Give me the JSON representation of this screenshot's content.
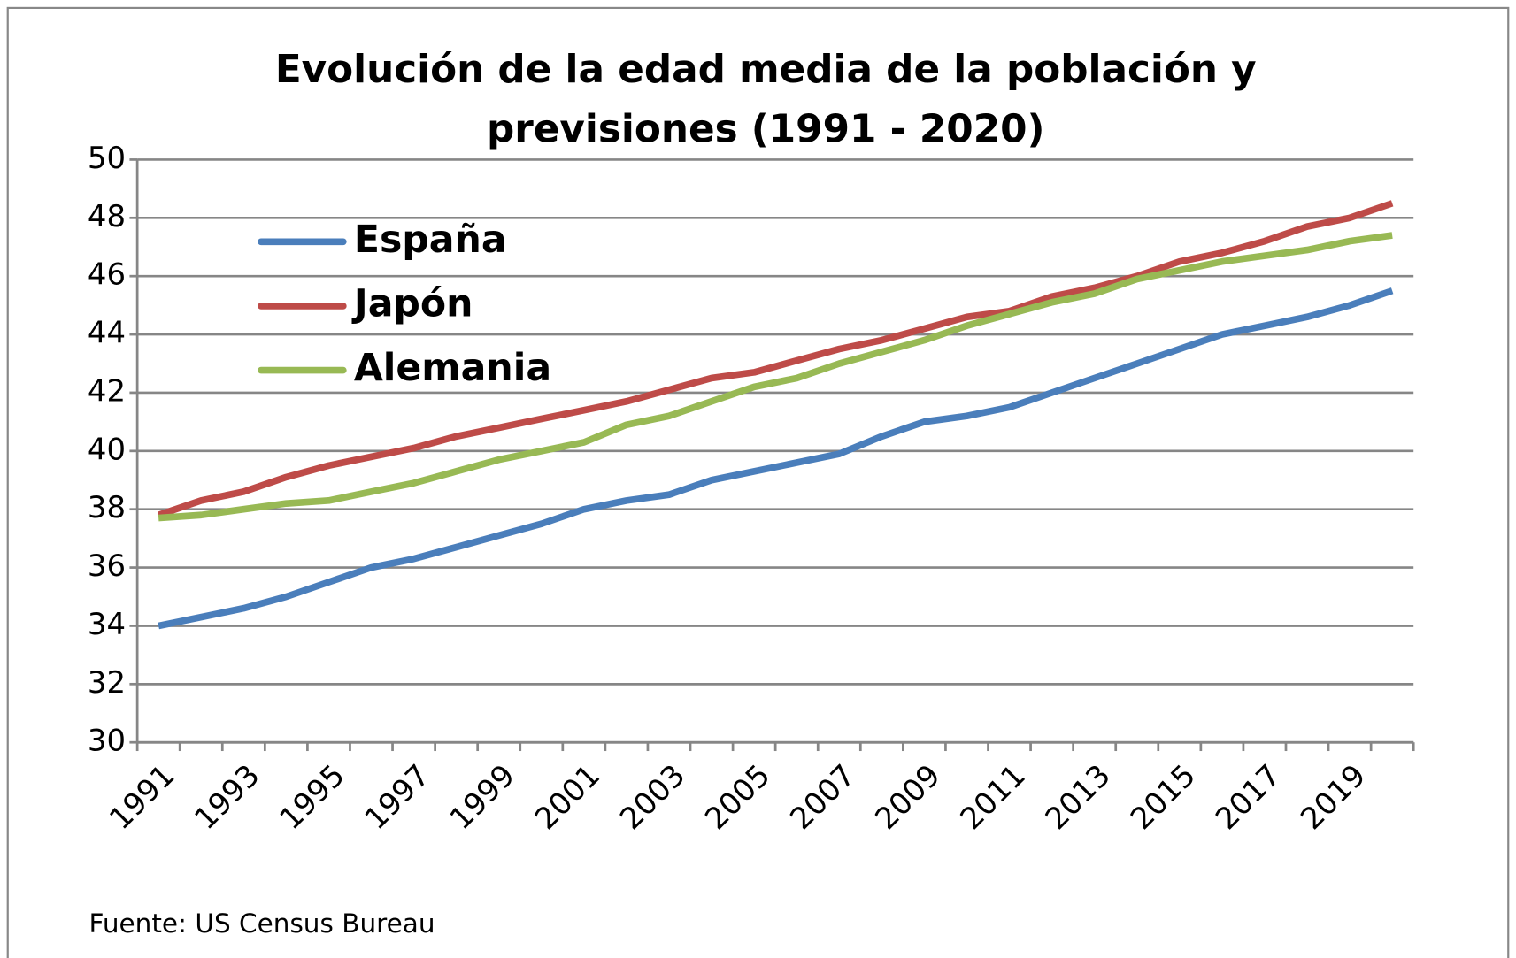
{
  "chart_data": {
    "type": "line",
    "title": [
      "Evolución de la edad media de la población y",
      "previsiones (1991 - 2020)"
    ],
    "source": "Fuente: US Census Bureau",
    "categories": [
      "1991",
      null,
      "1993",
      null,
      "1995",
      null,
      "1997",
      null,
      "1999",
      null,
      "2001",
      null,
      "2003",
      null,
      "2005",
      null,
      "2007",
      null,
      "2009",
      null,
      "2011",
      null,
      "2013",
      null,
      "2015",
      null,
      "2017",
      null,
      "2019",
      null
    ],
    "series": [
      {
        "name": "España",
        "color": "#4a7ebb",
        "values": [
          34.0,
          34.3,
          34.6,
          35.0,
          35.5,
          36.0,
          36.3,
          36.7,
          37.1,
          37.5,
          38.0,
          38.3,
          38.5,
          39.0,
          39.3,
          39.6,
          39.9,
          40.5,
          41.0,
          41.2,
          41.5,
          42.0,
          42.5,
          43.0,
          43.5,
          44.0,
          44.3,
          44.6,
          45.0,
          45.5
        ]
      },
      {
        "name": "Japón",
        "color": "#be4b48",
        "values": [
          37.8,
          38.3,
          38.6,
          39.1,
          39.5,
          39.8,
          40.1,
          40.5,
          40.8,
          41.1,
          41.4,
          41.7,
          42.1,
          42.5,
          42.7,
          43.1,
          43.5,
          43.8,
          44.2,
          44.6,
          44.8,
          45.3,
          45.6,
          46.0,
          46.5,
          46.8,
          47.2,
          47.7,
          48.0,
          48.5
        ]
      },
      {
        "name": "Alemania",
        "color": "#98b954",
        "values": [
          37.7,
          37.8,
          38.0,
          38.2,
          38.3,
          38.6,
          38.9,
          39.3,
          39.7,
          40.0,
          40.3,
          40.9,
          41.2,
          41.7,
          42.2,
          42.5,
          43.0,
          43.4,
          43.8,
          44.3,
          44.7,
          45.1,
          45.4,
          45.9,
          46.2,
          46.5,
          46.7,
          46.9,
          47.2,
          47.4
        ]
      }
    ],
    "ylim": [
      30,
      50
    ],
    "yticks": [
      30,
      32,
      34,
      36,
      38,
      40,
      42,
      44,
      46,
      48,
      50
    ],
    "grid": true,
    "legend": "upper-left"
  }
}
